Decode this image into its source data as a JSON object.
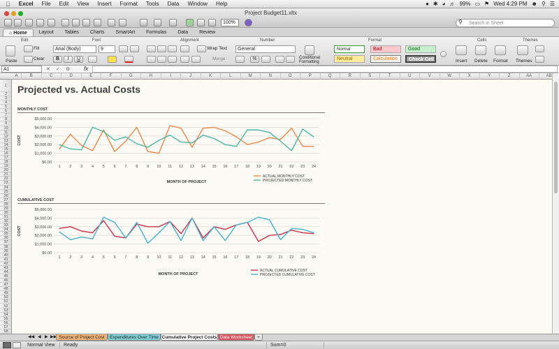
{
  "menubar": {
    "app": "Excel",
    "items": [
      "File",
      "Edit",
      "View",
      "Insert",
      "Format",
      "Tools",
      "Data",
      "Window",
      "Help"
    ],
    "battery": "99%",
    "clock": "Wed 4:29 PM"
  },
  "window": {
    "title": "Project Budget11.xltx",
    "zoom": "100%",
    "search_placeholder": "Search in Sheet"
  },
  "ribbon": {
    "tabs": [
      "Home",
      "Layout",
      "Tables",
      "Charts",
      "SmartArt",
      "Formulas",
      "Data",
      "Review"
    ],
    "groups": {
      "edit": "Edit",
      "font": "Font",
      "alignment": "Alignment",
      "number": "Number",
      "format": "Format",
      "cells": "Cells",
      "themes": "Themes"
    },
    "paste": "Paste",
    "fill": "Fill",
    "clear": "Clear",
    "font_name": "Arial (Body)",
    "font_size": "9",
    "wrap_text": "Wrap Text",
    "merge": "Merge",
    "number_format": "General",
    "conditional_formatting": "Conditional Formatting",
    "styles": {
      "normal": "Normal",
      "bad": "Bad",
      "good": "Good",
      "neutral": "Neutral",
      "calculation": "Calculation",
      "check_cell": "Check Cell"
    },
    "insert": "Insert",
    "delete": "Delete",
    "format_btn": "Format",
    "themes_btn": "Themes"
  },
  "formula_bar": {
    "cell_ref": "A1",
    "fx": "fx"
  },
  "columns": [
    "A",
    "B",
    "C",
    "D",
    "E",
    "F",
    "G",
    "H",
    "I",
    "J",
    "K",
    "L",
    "M",
    "N",
    "O",
    "P",
    "Q",
    "R",
    "S",
    "T",
    "U",
    "V",
    "W",
    "X",
    "Y",
    "Z",
    "AA",
    "AB"
  ],
  "sheet": {
    "title": "Projected vs. Actual Costs",
    "section1": "MONTHLY COST",
    "section2": "CUMULATIVE COST"
  },
  "chart_data": [
    {
      "type": "line",
      "title": "",
      "xlabel": "MONTH OF PROJECT",
      "ylabel": "COST",
      "ylim": [
        0,
        5000
      ],
      "yticks": [
        "$0.00",
        "$1,000.00",
        "$2,000.00",
        "$3,000.00",
        "$4,000.00",
        "$5,000.00"
      ],
      "categories": [
        1,
        2,
        3,
        4,
        5,
        6,
        7,
        8,
        9,
        10,
        11,
        12,
        13,
        14,
        15,
        16,
        17,
        18,
        19,
        20,
        21,
        22,
        23,
        24
      ],
      "legend_position": "bottom-right",
      "series": [
        {
          "name": "ACTUAL MONTHLY COST",
          "color": "#e8894a",
          "values": [
            1500,
            3200,
            1900,
            1300,
            3700,
            1200,
            2400,
            4000,
            1200,
            1000,
            4200,
            3900,
            1700,
            3900,
            4000,
            3600,
            2900,
            2000,
            2300,
            2800,
            2600,
            3900,
            1800,
            1800
          ]
        },
        {
          "name": "PROJECTED MONTHLY COST",
          "color": "#4fb6a5",
          "values": [
            2000,
            1500,
            1400,
            4000,
            3500,
            2500,
            2900,
            2100,
            1700,
            2500,
            3100,
            2300,
            2200,
            3100,
            2700,
            2000,
            1800,
            3700,
            3700,
            3400,
            2400,
            1300,
            3800,
            2900
          ]
        }
      ]
    },
    {
      "type": "line",
      "title": "",
      "xlabel": "MONTH OF PROJECT",
      "ylabel": "COST",
      "ylim": [
        0,
        5000
      ],
      "yticks": [
        "$0.00",
        "$1,000.00",
        "$2,000.00",
        "$3,000.00",
        "$4,000.00",
        "$5,000.00"
      ],
      "categories": [
        1,
        2,
        3,
        4,
        5,
        6,
        7,
        8,
        9,
        10,
        11,
        12,
        13,
        14,
        15,
        16,
        17,
        18,
        19,
        20,
        21,
        22,
        23,
        24
      ],
      "legend_position": "bottom-right",
      "series": [
        {
          "name": "ACTUAL CUMULATIVE COST",
          "color": "#c8324a",
          "values": [
            2800,
            3000,
            2500,
            2300,
            3700,
            1900,
            1700,
            3300,
            3000,
            3000,
            3600,
            2200,
            4000,
            1700,
            3000,
            2700,
            3200,
            3500,
            1300,
            2000,
            2100,
            2600,
            2300,
            2200
          ]
        },
        {
          "name": "PROJECTED CUMULATIVE COST",
          "color": "#4ab0cc",
          "values": [
            2400,
            1500,
            1800,
            1600,
            4100,
            3500,
            1700,
            3500,
            1100,
            2300,
            3600,
            1400,
            4000,
            1400,
            3000,
            1400,
            3200,
            3500,
            4100,
            3800,
            1500,
            2800,
            2700,
            2300
          ]
        }
      ]
    }
  ],
  "sheet_tabs": [
    "Source of Project Cost",
    "Expenditures Over Time",
    "Cumulative Project Costs",
    "Data Worksheet"
  ],
  "status": {
    "view": "Normal View",
    "ready": "Ready",
    "sum": "Sum=0"
  }
}
